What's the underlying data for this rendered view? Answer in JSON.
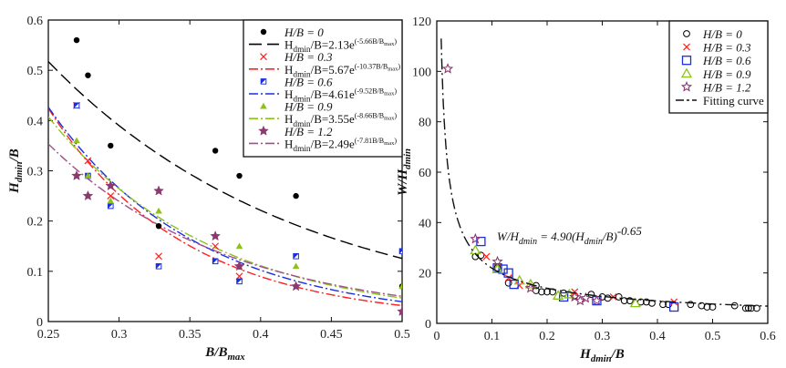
{
  "chart_data": [
    {
      "type": "scatter",
      "panel": "left",
      "xlabel": "B/B_{max}",
      "ylabel": "H_{dmin}/B",
      "xlim": [
        0.25,
        0.5
      ],
      "ylim": [
        0,
        0.6
      ],
      "xticks": [
        0.25,
        0.3,
        0.35,
        0.4,
        0.45,
        0.5
      ],
      "xtick_labels": [
        "0.25",
        "0.3",
        "0.35",
        "0.4",
        "0.45",
        "0.5"
      ],
      "yticks": [
        0,
        0.1,
        0.2,
        0.3,
        0.4,
        0.5,
        0.6
      ],
      "ytick_labels": [
        "0",
        "0.1",
        "0.2",
        "0.3",
        "0.4",
        "0.5",
        "0.6"
      ],
      "legend_position": "top-right",
      "series": [
        {
          "name": "H/B = 0",
          "marker": "dot",
          "color": "#000000",
          "x": [
            0.27,
            0.278,
            0.294,
            0.328,
            0.368,
            0.385,
            0.425,
            0.5
          ],
          "y": [
            0.56,
            0.49,
            0.35,
            0.19,
            0.34,
            0.29,
            0.25,
            0.07
          ],
          "fit": {
            "label": "H_{dmin}/B=2.13e^{(-5.66B/B_{max})}",
            "a": 2.13,
            "b": -5.66,
            "dash": "14,6"
          }
        },
        {
          "name": "H/B = 0.3",
          "marker": "x",
          "color": "#ff2020",
          "x": [
            0.27,
            0.278,
            0.294,
            0.328,
            0.368,
            0.385
          ],
          "y": [
            0.43,
            0.32,
            0.25,
            0.13,
            0.15,
            0.09
          ],
          "fit": {
            "label": "H_{dmin}/B=5.67e^{(-10.37B/B_{max})}",
            "a": 5.67,
            "b": -10.37,
            "dash": "10,3,2,3"
          }
        },
        {
          "name": "H/B = 0.6",
          "marker": "square-half",
          "color": "#1a2fe0",
          "x": [
            0.27,
            0.278,
            0.294,
            0.328,
            0.368,
            0.385,
            0.425,
            0.5
          ],
          "y": [
            0.43,
            0.29,
            0.23,
            0.11,
            0.12,
            0.08,
            0.13,
            0.14
          ],
          "fit": {
            "label": "H_{dmin}/B=4.61e^{(-9.52B/B_{max})}",
            "a": 4.61,
            "b": -9.52,
            "dash": "10,3,2,3"
          }
        },
        {
          "name": "H/B = 0.9",
          "marker": "triangle",
          "color": "#8cc21c",
          "x": [
            0.27,
            0.278,
            0.294,
            0.328,
            0.385,
            0.425,
            0.5
          ],
          "y": [
            0.36,
            0.29,
            0.24,
            0.22,
            0.15,
            0.11,
            0.07
          ],
          "fit": {
            "label": "H_{dmin}/B=3.55e^{(-8.66B/B_{max})}",
            "a": 3.55,
            "b": -8.66,
            "dash": "10,3,2,3"
          }
        },
        {
          "name": "H/B = 1.2",
          "marker": "star",
          "color": "#8b3a6e",
          "x": [
            0.27,
            0.278,
            0.294,
            0.328,
            0.368,
            0.385,
            0.425,
            0.5
          ],
          "y": [
            0.29,
            0.25,
            0.27,
            0.26,
            0.17,
            0.11,
            0.07,
            0.02
          ],
          "fit": {
            "label": "H_{dmin}/B=2.49e^{(-7.81B/B_{max})}",
            "a": 2.49,
            "b": -7.81,
            "dash": "10,3,2,3",
            "color": "#a0508a"
          }
        }
      ]
    },
    {
      "type": "scatter",
      "panel": "right",
      "xlabel": "H_{dmin}/B",
      "ylabel": "W/H_{dmin}",
      "xlim": [
        0,
        0.6
      ],
      "ylim": [
        0,
        120
      ],
      "xticks": [
        0,
        0.1,
        0.2,
        0.3,
        0.4,
        0.5,
        0.6
      ],
      "xtick_labels": [
        "0",
        "0.1",
        "0.2",
        "0.3",
        "0.4",
        "0.5",
        "0.6"
      ],
      "yticks": [
        0,
        20,
        40,
        60,
        80,
        100,
        120
      ],
      "ytick_labels": [
        "0",
        "20",
        "40",
        "60",
        "80",
        "100",
        "120"
      ],
      "legend_position": "top-right",
      "annotation": "W/H_{dmin} = 4.90(H_{dmin}/B)^{-0.65}",
      "fit": {
        "label": "Fitting curve",
        "a": 4.9,
        "b": -0.65,
        "xmin": 0.008,
        "xmax": 0.6,
        "dash": "12,4,2,4"
      },
      "series": [
        {
          "name": "H/B = 0",
          "marker": "open-circle",
          "color": "#000000",
          "x": [
            0.07,
            0.08,
            0.11,
            0.13,
            0.18,
            0.18,
            0.19,
            0.2,
            0.21,
            0.23,
            0.25,
            0.28,
            0.3,
            0.31,
            0.33,
            0.34,
            0.35,
            0.37,
            0.38,
            0.39,
            0.41,
            0.42,
            0.46,
            0.48,
            0.49,
            0.5,
            0.54,
            0.56,
            0.565,
            0.57,
            0.58
          ],
          "y": [
            26.5,
            27,
            22,
            16,
            15,
            13,
            12.5,
            12.5,
            12.5,
            12,
            11,
            11.5,
            10.5,
            10,
            10.5,
            9,
            9,
            8.5,
            8.5,
            8,
            7.5,
            7.5,
            7.5,
            7,
            6.5,
            6.5,
            7,
            6,
            6,
            6,
            6
          ]
        },
        {
          "name": "H/B = 0.3",
          "marker": "x",
          "color": "#ff2020",
          "x": [
            0.09,
            0.13,
            0.15,
            0.25,
            0.32,
            0.43
          ],
          "y": [
            26.5,
            18,
            15,
            12.5,
            10.5,
            8.5
          ]
        },
        {
          "name": "H/B = 0.6",
          "marker": "open-square",
          "color": "#1a2fe0",
          "x": [
            0.08,
            0.11,
            0.12,
            0.13,
            0.14,
            0.23,
            0.29,
            0.43
          ],
          "y": [
            32.5,
            22,
            21.5,
            20,
            15.5,
            10.5,
            9,
            6.5
          ]
        },
        {
          "name": "H/B = 0.9",
          "marker": "open-triangle",
          "color": "#8cc21c",
          "x": [
            0.07,
            0.11,
            0.15,
            0.17,
            0.22,
            0.24,
            0.36
          ],
          "y": [
            29,
            21.5,
            17,
            15.5,
            11,
            11.5,
            8
          ]
        },
        {
          "name": "H/B = 1.2",
          "marker": "open-star",
          "color": "#8b3a6e",
          "x": [
            0.02,
            0.07,
            0.11,
            0.17,
            0.25,
            0.26,
            0.27,
            0.29
          ],
          "y": [
            101,
            33.5,
            24.5,
            14,
            10.5,
            9,
            10,
            9
          ]
        }
      ]
    }
  ]
}
